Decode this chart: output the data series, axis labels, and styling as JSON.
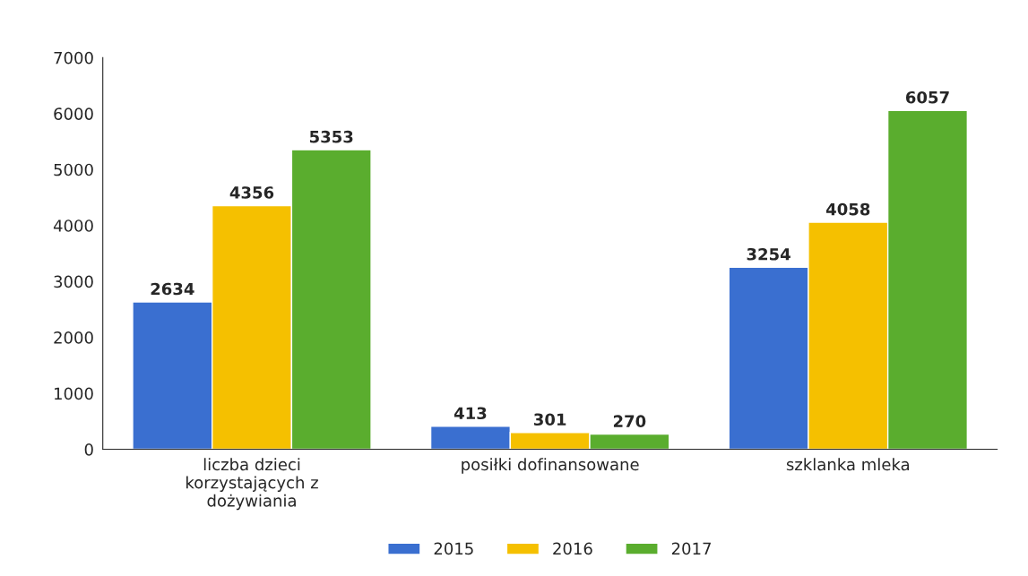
{
  "chart_data": {
    "type": "bar",
    "categories": [
      "liczba dzieci\nkorzystających z\ndożywiania",
      "posiłki dofinansowane",
      "szklanka mleka"
    ],
    "series": [
      {
        "name": "2015",
        "color": "#3a6fd0",
        "values": [
          2634,
          413,
          3254
        ]
      },
      {
        "name": "2016",
        "color": "#f5c000",
        "values": [
          4356,
          301,
          4058
        ]
      },
      {
        "name": "2017",
        "color": "#5aad2e",
        "values": [
          5353,
          270,
          6057
        ]
      }
    ],
    "ylim": [
      0,
      7000
    ],
    "yticks": [
      0,
      1000,
      2000,
      3000,
      4000,
      5000,
      6000,
      7000
    ],
    "data_labels": true,
    "grid": false,
    "legend": "bottom"
  }
}
